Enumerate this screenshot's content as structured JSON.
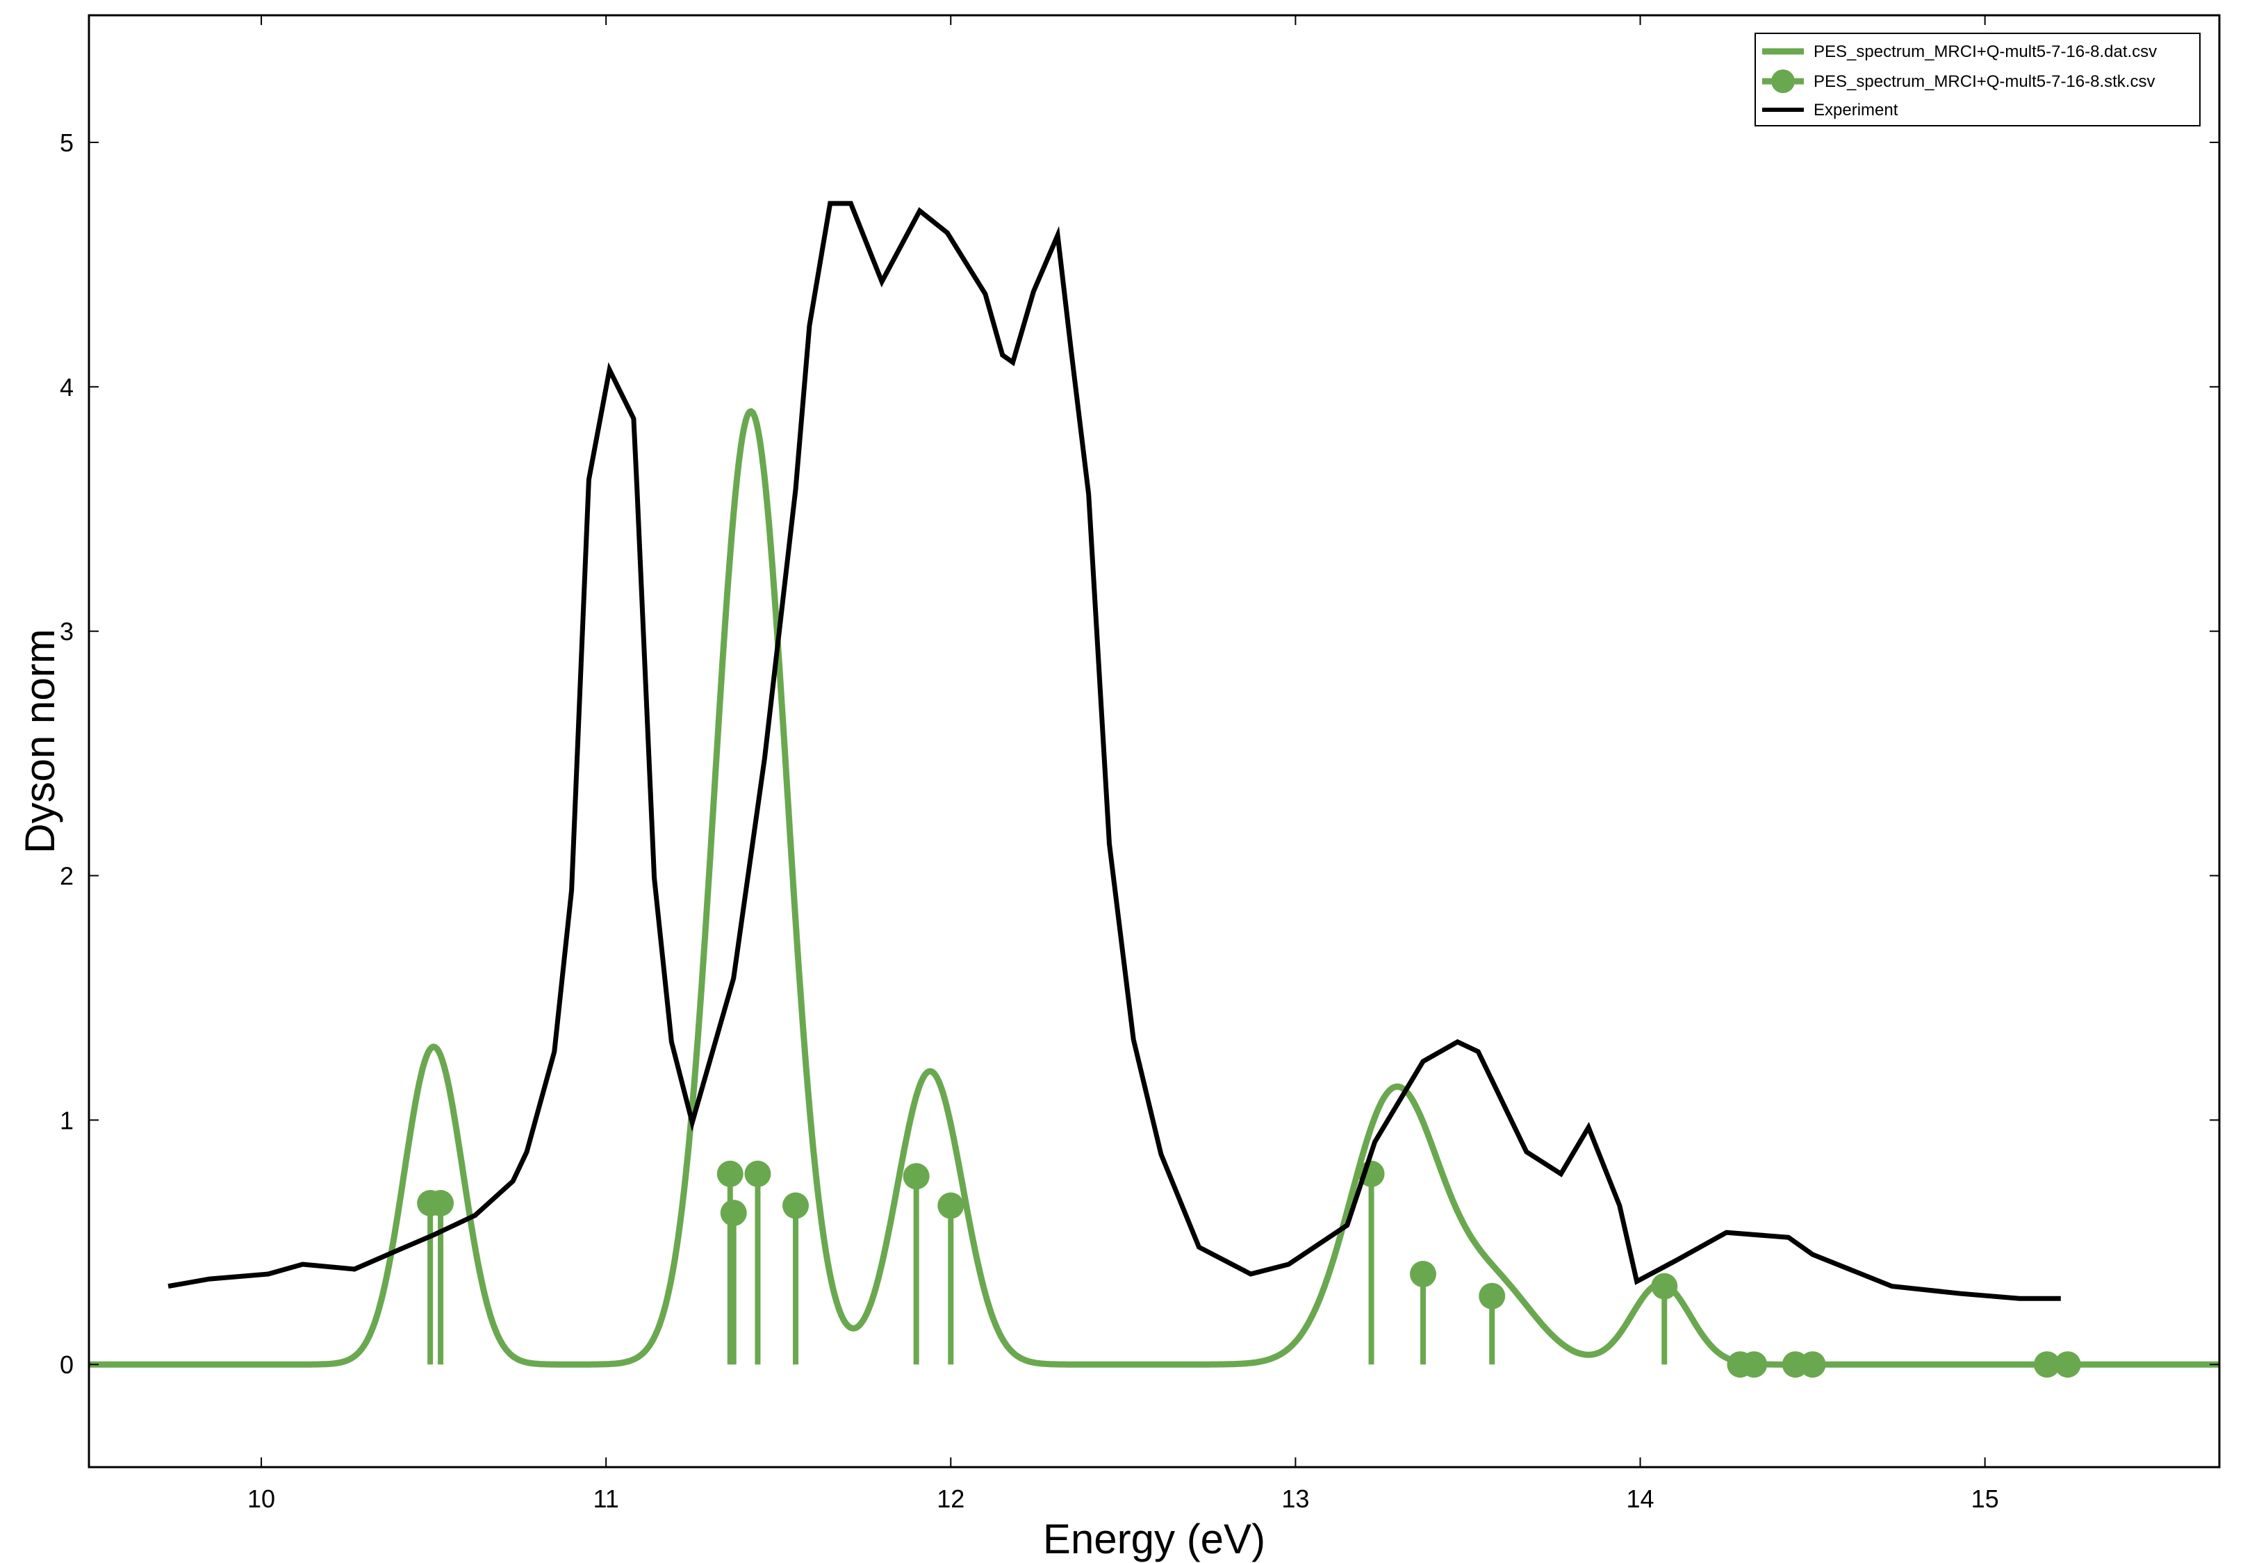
{
  "chart_data": {
    "type": "line",
    "xlabel": "Energy (eV)",
    "ylabel": "Dyson norm",
    "xlim": [
      9.5,
      15.68
    ],
    "ylim": [
      -0.42,
      5.52
    ],
    "x_ticks": [
      10,
      11,
      12,
      13,
      14,
      15
    ],
    "y_ticks": [
      0,
      1,
      2,
      3,
      4,
      5
    ],
    "grid": false,
    "legend_position": "top-right",
    "series": [
      {
        "name": "PES_spectrum_MRCI+Q-mult5-7-16-8.dat.csv",
        "style": "line",
        "color": "#6aa84f",
        "peaks": [
          {
            "center": 10.5,
            "height": 1.3,
            "sigma": 0.085
          },
          {
            "center": 11.42,
            "height": 3.9,
            "sigma": 0.105
          },
          {
            "center": 11.94,
            "height": 1.2,
            "sigma": 0.095
          },
          {
            "center": 13.29,
            "height": 1.12,
            "sigma": 0.13
          },
          {
            "center": 13.58,
            "height": 0.3,
            "sigma": 0.12
          },
          {
            "center": 14.06,
            "height": 0.33,
            "sigma": 0.085
          }
        ]
      },
      {
        "name": "PES_spectrum_MRCI+Q-mult5-7-16-8.stk.csv",
        "style": "stem",
        "color": "#6aa84f",
        "x": [
          10.49,
          10.52,
          11.36,
          11.37,
          11.44,
          11.55,
          11.9,
          12.0,
          13.22,
          13.37,
          13.57,
          14.07,
          14.29,
          14.33,
          14.45,
          14.5,
          15.18,
          15.24
        ],
        "y": [
          0.66,
          0.66,
          0.78,
          0.62,
          0.78,
          0.65,
          0.77,
          0.65,
          0.78,
          0.37,
          0.28,
          0.32,
          0.0,
          0.0,
          0.0,
          0.0,
          0.0,
          0.0
        ]
      },
      {
        "name": "Experiment",
        "style": "line",
        "color": "#000000",
        "x": [
          9.73,
          9.85,
          10.02,
          10.12,
          10.27,
          10.4,
          10.5,
          10.62,
          10.73,
          10.77,
          10.85,
          10.9,
          10.95,
          11.01,
          11.08,
          11.09,
          11.14,
          11.19,
          11.25,
          11.37,
          11.46,
          11.55,
          11.59,
          11.65,
          11.71,
          11.8,
          11.91,
          11.99,
          12.1,
          12.15,
          12.18,
          12.24,
          12.31,
          12.35,
          12.4,
          12.46,
          12.53,
          12.61,
          12.72,
          12.87,
          12.98,
          13.15,
          13.23,
          13.37,
          13.47,
          13.53,
          13.67,
          13.77,
          13.85,
          13.94,
          13.99,
          14.11,
          14.25,
          14.43,
          14.5,
          14.73,
          14.93,
          15.1,
          15.22
        ],
        "y": [
          0.32,
          0.35,
          0.37,
          0.41,
          0.39,
          0.47,
          0.53,
          0.61,
          0.75,
          0.87,
          1.28,
          1.94,
          3.62,
          4.07,
          3.87,
          3.58,
          1.99,
          1.32,
          0.99,
          1.58,
          2.48,
          3.58,
          4.25,
          4.75,
          4.75,
          4.43,
          4.72,
          4.63,
          4.38,
          4.13,
          4.1,
          4.39,
          4.62,
          4.14,
          3.56,
          2.13,
          1.33,
          0.86,
          0.48,
          0.37,
          0.41,
          0.57,
          0.91,
          1.24,
          1.32,
          1.28,
          0.87,
          0.78,
          0.97,
          0.65,
          0.34,
          0.43,
          0.54,
          0.52,
          0.45,
          0.32,
          0.29,
          0.27,
          0.27
        ]
      }
    ]
  }
}
